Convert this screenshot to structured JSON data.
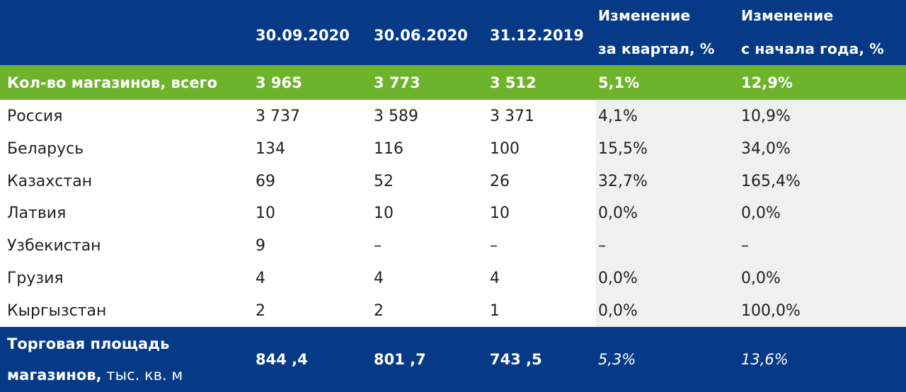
{
  "header": {
    "col1": "30.09.2020",
    "col2": "30.06.2020",
    "col3": "31.12.2019",
    "col4_line1": "Изменение",
    "col4_line2": "за квартал, %",
    "col5_line1": "Изменение",
    "col5_line2": "с начала года, %"
  },
  "total": {
    "label": "Кол-во магазинов, всего",
    "values": [
      "3 965",
      "3 773",
      "3 512",
      "5,1%",
      "12,9%"
    ]
  },
  "rows": [
    {
      "label": "Россия",
      "values": [
        "3 737",
        "3 589",
        "3 371",
        "4,1%",
        "10,9%"
      ]
    },
    {
      "label": "Беларусь",
      "values": [
        "134",
        "116",
        "100",
        "15,5%",
        "34,0%"
      ]
    },
    {
      "label": "Казахстан",
      "values": [
        "69",
        "52",
        "26",
        "32,7%",
        "165,4%"
      ]
    },
    {
      "label": "Латвия",
      "values": [
        "10",
        "10",
        "10",
        "0,0%",
        "0,0%"
      ]
    },
    {
      "label": "Узбекистан",
      "values": [
        "9",
        "–",
        "–",
        "–",
        "–"
      ]
    },
    {
      "label": "Грузия",
      "values": [
        "4",
        "4",
        "4",
        "0,0%",
        "0,0%"
      ]
    },
    {
      "label": "Кыргызстан",
      "values": [
        "2",
        "2",
        "1",
        "0,0%",
        "100,0%"
      ]
    }
  ],
  "footer": {
    "label_line1": "Торговая площадь",
    "label_line2_bold": "магазинов,",
    "label_line2_unit": " тыс. кв. м",
    "values": [
      "844 ,4",
      "801 ,7",
      "743 ,5",
      "5,3%",
      "13,6%"
    ]
  },
  "colors": {
    "header_bg": "#063a86",
    "total_bg": "#6db32c",
    "shade_bg": "#f0f0f0",
    "text_dark": "#1f1f1f"
  }
}
